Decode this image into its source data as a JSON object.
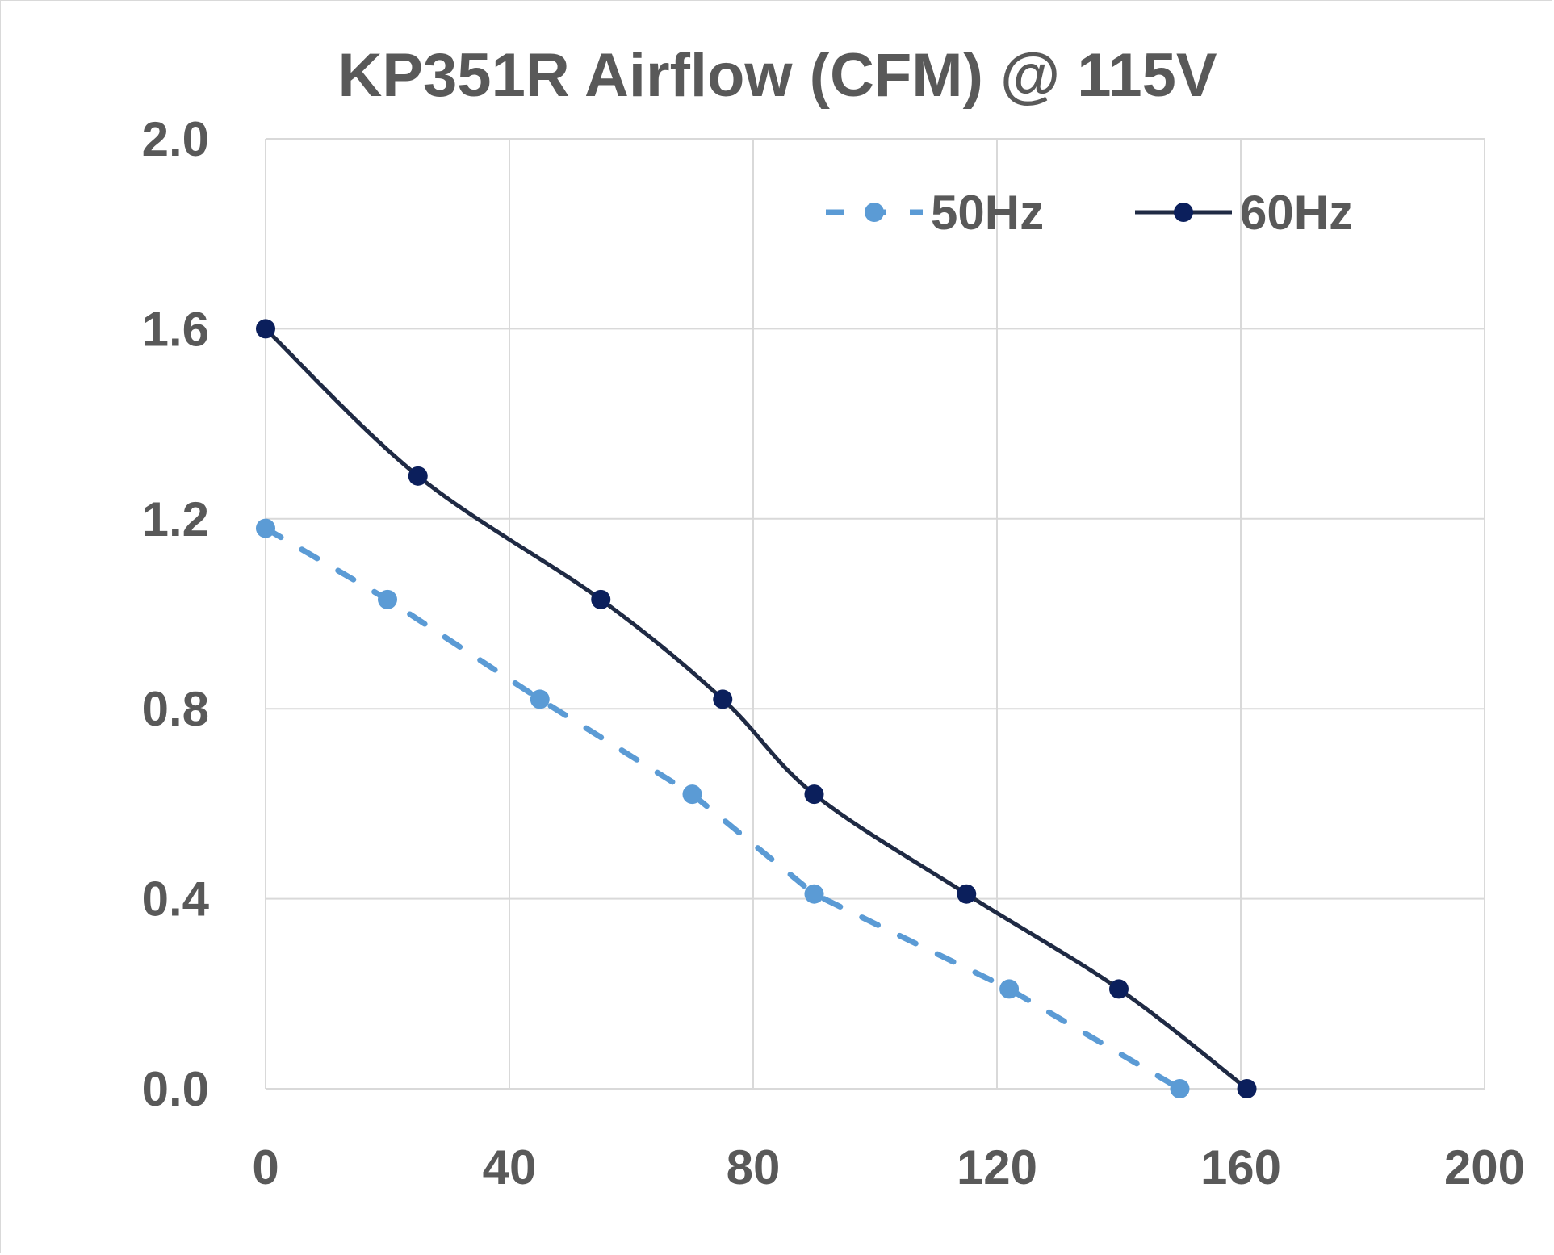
{
  "chart_data": {
    "type": "line",
    "title": "KP351R Airflow (CFM) @ 115V",
    "xlabel": "",
    "ylabel": "",
    "xlim": [
      0,
      200
    ],
    "ylim": [
      0,
      2.0
    ],
    "x_ticks": [
      "0",
      "40",
      "80",
      "120",
      "160",
      "200"
    ],
    "y_ticks": [
      "0.0",
      "0.4",
      "0.8",
      "1.2",
      "1.6",
      "2.0"
    ],
    "grid": true,
    "legend_position": "top-right",
    "series": [
      {
        "name": "50Hz",
        "style": "dashed",
        "color": "#5b9bd5",
        "points": [
          [
            0,
            1.18
          ],
          [
            20,
            1.03
          ],
          [
            45,
            0.82
          ],
          [
            70,
            0.62
          ],
          [
            90,
            0.41
          ],
          [
            122,
            0.21
          ],
          [
            150,
            0.0
          ]
        ]
      },
      {
        "name": "60Hz",
        "style": "solid",
        "color": "#1f2a44",
        "marker_color": "#0b1f5c",
        "points": [
          [
            0,
            1.6
          ],
          [
            25,
            1.29
          ],
          [
            55,
            1.03
          ],
          [
            75,
            0.82
          ],
          [
            90,
            0.62
          ],
          [
            115,
            0.41
          ],
          [
            140,
            0.21
          ],
          [
            161,
            0.0
          ]
        ]
      }
    ]
  }
}
